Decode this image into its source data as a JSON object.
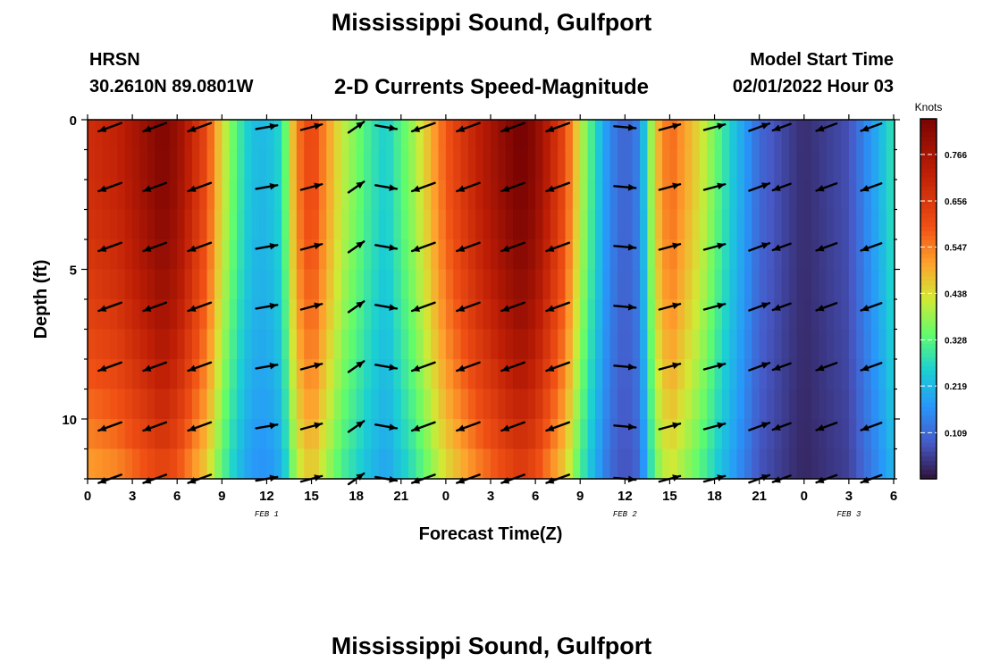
{
  "header": {
    "title": "Mississippi Sound, Gulfport",
    "station": "HRSN",
    "coords": "30.2610N  89.0801W",
    "subtitle": "2-D Currents Speed-Magnitude",
    "model_start_label": "Model Start Time",
    "model_start_value": "02/01/2022 Hour 03"
  },
  "footer": {
    "next_title": "Mississippi Sound, Gulfport"
  },
  "chart_data": {
    "type": "heatmap",
    "title": "2-D Currents Speed-Magnitude",
    "xlabel": "Forecast Time(Z)",
    "ylabel": "Depth (ft)",
    "x_range_hours": [
      0,
      54
    ],
    "y_range_ft": [
      0,
      12
    ],
    "y_inverted": true,
    "x_tick_labels": [
      "0",
      "3",
      "6",
      "9",
      "12",
      "15",
      "18",
      "21",
      "0",
      "3",
      "6",
      "9",
      "12",
      "15",
      "18",
      "21",
      "0",
      "3",
      "6"
    ],
    "y_tick_values": [
      0,
      5,
      10
    ],
    "date_labels": [
      {
        "text": "FEB 1",
        "hour": 12
      },
      {
        "text": "FEB 2",
        "hour": 36
      },
      {
        "text": "FEB 3",
        "hour": 51
      }
    ],
    "colorbar": {
      "title": "Knots",
      "ticks": [
        0.109,
        0.219,
        0.328,
        0.438,
        0.547,
        0.656,
        0.766
      ],
      "range": [
        0,
        0.85
      ]
    },
    "speed_profile": {
      "hours": [
        0,
        2,
        4,
        5,
        6,
        8,
        9,
        10,
        11,
        12,
        13,
        14,
        15,
        17,
        19,
        20,
        22,
        24,
        26,
        28,
        29,
        30,
        32,
        33,
        34,
        35,
        36,
        37,
        38,
        39,
        41,
        43,
        45,
        47,
        48,
        51,
        53,
        54
      ],
      "knots": [
        0.65,
        0.68,
        0.76,
        0.8,
        0.76,
        0.58,
        0.42,
        0.3,
        0.22,
        0.21,
        0.26,
        0.52,
        0.6,
        0.4,
        0.28,
        0.24,
        0.38,
        0.56,
        0.68,
        0.78,
        0.82,
        0.78,
        0.58,
        0.4,
        0.26,
        0.14,
        0.09,
        0.14,
        0.44,
        0.55,
        0.42,
        0.25,
        0.1,
        0.05,
        0.03,
        0.07,
        0.2,
        0.28
      ]
    },
    "vectors": {
      "hours": [
        1.5,
        4.5,
        7.5,
        12,
        15,
        18,
        20,
        22.5,
        25.5,
        28.5,
        31.5,
        36,
        39,
        42,
        45,
        46.5,
        49.5,
        52.5
      ],
      "depths_ft": [
        0.25,
        2.25,
        4.25,
        6.25,
        8.25,
        10.25,
        12
      ],
      "angle_deg": [
        -160,
        -160,
        -160,
        10,
        15,
        35,
        -10,
        -160,
        -160,
        -160,
        -160,
        -5,
        15,
        15,
        20,
        -160,
        -160,
        -160
      ],
      "length_scale": [
        0.9,
        0.9,
        0.9,
        0.8,
        0.8,
        0.7,
        0.8,
        0.9,
        0.9,
        0.9,
        0.9,
        0.8,
        0.8,
        0.8,
        0.8,
        0.7,
        0.8,
        0.8
      ]
    }
  }
}
